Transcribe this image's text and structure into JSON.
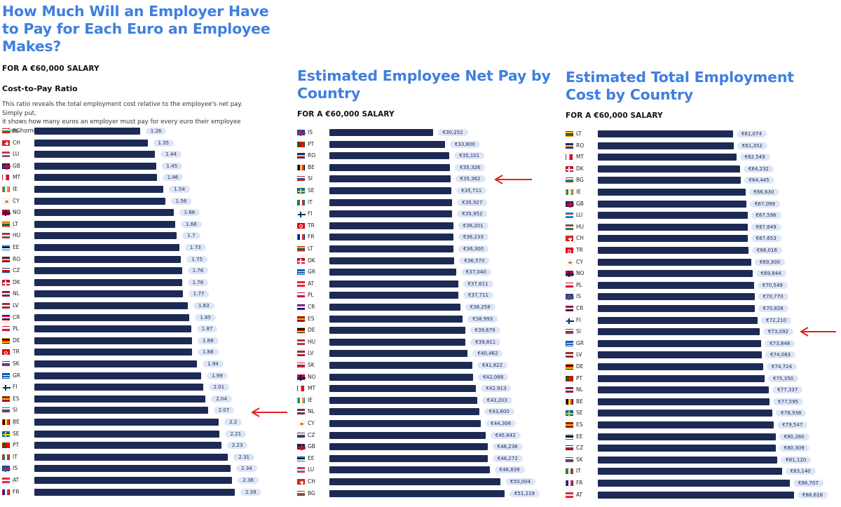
{
  "colors": {
    "accent": "#3f7fe0",
    "bar": "#1c2a55",
    "label_bg": "#dde6f6",
    "arrow": "#e02020"
  },
  "left": {
    "title_lines": [
      "How Much Will an Employer Have",
      "to Pay for Each Euro an Employee",
      "Makes?"
    ],
    "subtitle": "FOR A €60,000 SALARY",
    "section": "Cost-to-Pay Ratio",
    "desc_lines": [
      "This ratio reveals the total employment cost relative to the employee's net pay. Simply put,",
      "it shows how many euros an employer must pay for every euro their employee takes home."
    ]
  },
  "middle": {
    "title_lines": [
      "Estimated Employee Net Pay by",
      "Country"
    ],
    "subtitle": "FOR A €60,000 SALARY"
  },
  "right": {
    "title_lines": [
      "Estimated Total Employment",
      "Cost by Country"
    ],
    "subtitle": "FOR A €60,000 SALARY"
  },
  "chart_data": [
    {
      "type": "bar",
      "orientation": "horizontal",
      "title": "Cost-to-Pay Ratio",
      "xlim": [
        0,
        2.39
      ],
      "categories": [
        "BG",
        "CH",
        "LU",
        "GB",
        "MT",
        "IE",
        "CY",
        "NO",
        "LT",
        "HU",
        "EE",
        "RO",
        "CZ",
        "DK",
        "NL",
        "LV",
        "CR",
        "PL",
        "DE",
        "TR",
        "SK",
        "GR",
        "FI",
        "ES",
        "SI",
        "BE",
        "SE",
        "PT",
        "IT",
        "IS",
        "AT",
        "FR"
      ],
      "values": [
        1.26,
        1.35,
        1.44,
        1.45,
        1.46,
        1.54,
        1.56,
        1.66,
        1.68,
        1.7,
        1.73,
        1.75,
        1.76,
        1.76,
        1.77,
        1.83,
        1.85,
        1.87,
        1.88,
        1.88,
        1.94,
        1.99,
        2.01,
        2.04,
        2.07,
        2.2,
        2.21,
        2.23,
        2.31,
        2.34,
        2.36,
        2.39
      ],
      "labels": [
        "1.26",
        "1.35",
        "1.44",
        "1.45",
        "1.46",
        "1.54",
        "1.56",
        "1.66",
        "1.68",
        "1.7",
        "1.73",
        "1.75",
        "1.76",
        "1.76",
        "1.77",
        "1.83",
        "1.85",
        "1.87",
        "1.88",
        "1.88",
        "1.94",
        "1.99",
        "2.01",
        "2.04",
        "2.07",
        "2.2",
        "2.21",
        "2.23",
        "2.31",
        "2.34",
        "2.36",
        "2.39"
      ],
      "highlight": "SI"
    },
    {
      "type": "bar",
      "orientation": "horizontal",
      "title": "Estimated Employee Net Pay by Country",
      "xlim": [
        0,
        51219
      ],
      "categories": [
        "IS",
        "PT",
        "RO",
        "BE",
        "SI",
        "SE",
        "IT",
        "FI",
        "TR",
        "FR",
        "LT",
        "DK",
        "GR",
        "AT",
        "PL",
        "CR",
        "ES",
        "DE",
        "HU",
        "LV",
        "SK",
        "NO",
        "MT",
        "IE",
        "NL",
        "CY",
        "CZ",
        "GB",
        "EE",
        "LU",
        "CH",
        "BG"
      ],
      "values": [
        30252,
        33800,
        35101,
        35326,
        35362,
        35711,
        35927,
        35952,
        36201,
        36233,
        36300,
        36570,
        37040,
        37611,
        37711,
        38258,
        38993,
        39679,
        39811,
        40462,
        41822,
        42068,
        42913,
        43203,
        43800,
        44306,
        45642,
        46236,
        46272,
        46839,
        50004,
        51219
      ],
      "labels": [
        "€30,252",
        "€33,800",
        "€35,101",
        "€35,326",
        "€35,362",
        "€35,711",
        "€35,927",
        "€35,952",
        "€36,201",
        "€36,233",
        "€36,300",
        "€36,570",
        "€37,040",
        "€37,611",
        "€37,711",
        "€38,258",
        "€38,993",
        "€39,679",
        "€39,811",
        "€40,462",
        "€41,822",
        "€42,068",
        "€42,913",
        "€43,203",
        "€43,800",
        "€44,306",
        "€45,642",
        "€46,236",
        "€46,272",
        "€46,839",
        "€50,004",
        "€51,219"
      ],
      "highlight": "SI"
    },
    {
      "type": "bar",
      "orientation": "horizontal",
      "title": "Estimated Total Employment Cost by Country",
      "xlim": [
        0,
        88618
      ],
      "categories": [
        "LT",
        "RO",
        "MT",
        "DK",
        "BG",
        "IE",
        "GB",
        "LU",
        "HU",
        "CH",
        "TR",
        "CY",
        "NO",
        "PL",
        "IS",
        "CR",
        "FI",
        "SI",
        "GR",
        "LV",
        "DE",
        "PT",
        "NL",
        "BE",
        "SE",
        "ES",
        "EE",
        "CZ",
        "SK",
        "IT",
        "FR",
        "AT"
      ],
      "values": [
        61074,
        61352,
        62549,
        64232,
        64445,
        66630,
        67099,
        67596,
        67649,
        67653,
        68016,
        69300,
        69844,
        70549,
        70770,
        70828,
        72210,
        73092,
        73848,
        74083,
        74724,
        75350,
        77337,
        77595,
        78938,
        79547,
        80280,
        80309,
        81120,
        83140,
        86707,
        88618
      ],
      "labels": [
        "€61,074",
        "€61,352",
        "€62,549",
        "€64,232",
        "€64,445",
        "€66,630",
        "€67,099",
        "€67,596",
        "€67,649",
        "€67,653",
        "€68,016",
        "€69,300",
        "€69,844",
        "€70,549",
        "€70,770",
        "€70,828",
        "€72,210",
        "€73,092",
        "€73,848",
        "€74,083",
        "€74,724",
        "€75,350",
        "€77,337",
        "€77,595",
        "€78,938",
        "€79,547",
        "€80,280",
        "€80,309",
        "€81,120",
        "€83,140",
        "€86,707",
        "€88,618"
      ],
      "highlight": "SI"
    }
  ],
  "flags": {
    "BG": [
      "#ffffff",
      "#00966e",
      "#d62612"
    ],
    "CH": [
      "#da291c"
    ],
    "LU": [
      "#ed2939",
      "#ffffff",
      "#00a1de"
    ],
    "GB": [
      "#012169",
      "#c8102e"
    ],
    "MT": [
      "#ffffff",
      "#cf142b"
    ],
    "IE": [
      "#169b62",
      "#ffffff",
      "#ff883e"
    ],
    "CY": [
      "#ffffff",
      "#d57800"
    ],
    "NO": [
      "#ba0c2f",
      "#00205b"
    ],
    "LT": [
      "#fdb913",
      "#006a44",
      "#c1272d"
    ],
    "HU": [
      "#ce2939",
      "#ffffff",
      "#477050"
    ],
    "EE": [
      "#0072ce",
      "#000000",
      "#ffffff"
    ],
    "RO": [
      "#002b7f",
      "#fcd116",
      "#ce1126"
    ],
    "CZ": [
      "#ffffff",
      "#d7141a",
      "#11457e"
    ],
    "DK": [
      "#c8102e",
      "#ffffff"
    ],
    "NL": [
      "#ae1c28",
      "#ffffff",
      "#21468b"
    ],
    "LV": [
      "#9e3039",
      "#ffffff",
      "#9e3039"
    ],
    "CR": [
      "#ff0000",
      "#ffffff",
      "#171796"
    ],
    "PL": [
      "#ffffff",
      "#dc143c"
    ],
    "DE": [
      "#000000",
      "#dd0000",
      "#ffce00"
    ],
    "TR": [
      "#e30a17"
    ],
    "SK": [
      "#ffffff",
      "#0b4ea2",
      "#ee1c25"
    ],
    "GR": [
      "#0d5eaf",
      "#ffffff"
    ],
    "FI": [
      "#ffffff",
      "#002f6c"
    ],
    "ES": [
      "#aa151b",
      "#f1bf00",
      "#aa151b"
    ],
    "SI": [
      "#ffffff",
      "#005da4",
      "#ed1c24"
    ],
    "BE": [
      "#000000",
      "#fdda24",
      "#ef3340"
    ],
    "SE": [
      "#006aa7",
      "#fecc00"
    ],
    "PT": [
      "#006600",
      "#ff0000"
    ],
    "IT": [
      "#009246",
      "#ffffff",
      "#ce2b37"
    ],
    "IS": [
      "#02529c",
      "#dc1e35"
    ],
    "AT": [
      "#ed2939",
      "#ffffff",
      "#ed2939"
    ],
    "FR": [
      "#002395",
      "#ffffff",
      "#ed2939"
    ]
  }
}
